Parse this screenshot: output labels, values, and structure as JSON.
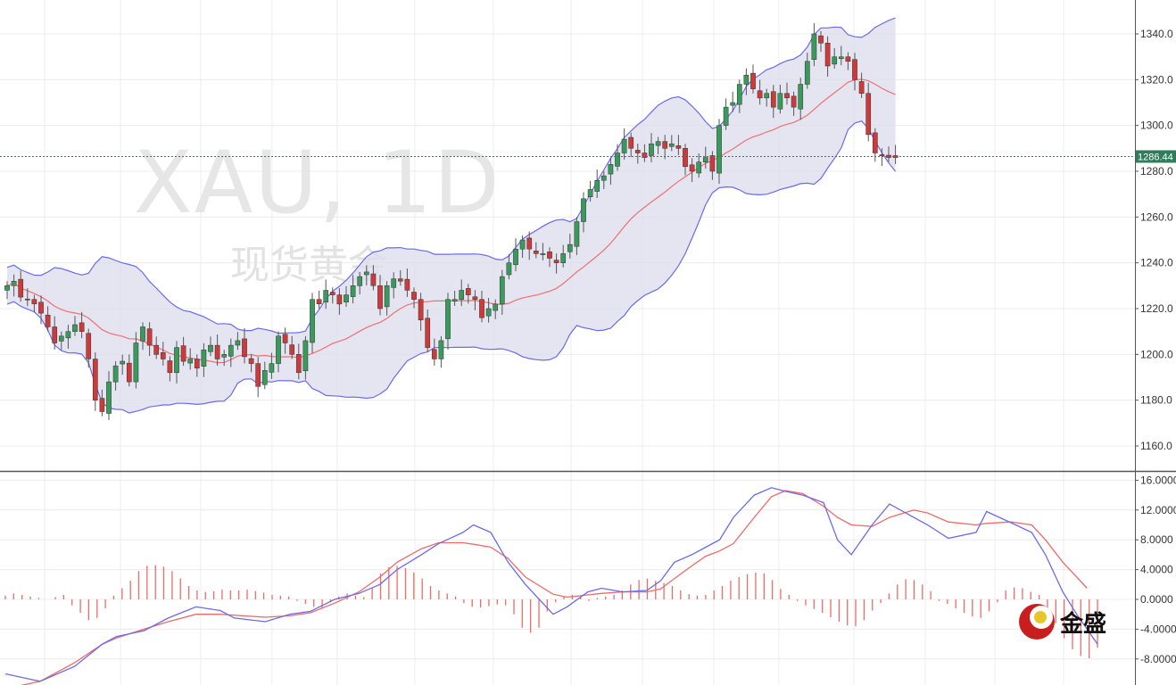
{
  "watermark": {
    "title": "XAU, 1D",
    "subtitle": "现货黄金"
  },
  "logo": {
    "name": "金盛"
  },
  "chart_data": [
    {
      "type": "candlestick",
      "panel": "price",
      "ylim": [
        1150,
        1350
      ],
      "grid": true,
      "y_ticks": [
        "1340.0",
        "1320.0",
        "1300.0",
        "1280.0",
        "1260.0",
        "1240.0",
        "1220.0",
        "1200.0",
        "1180.0",
        "1160.0"
      ],
      "y_tick_values": [
        1340,
        1320,
        1300,
        1280,
        1260,
        1240,
        1220,
        1200,
        1180,
        1160
      ],
      "last_price": {
        "label": "1286.44",
        "value": 1286.44,
        "color": "#2e7d5b"
      },
      "colors": {
        "up": "#3a9a5c",
        "down": "#cc3a3a",
        "band_fill": "#dcdcee",
        "band_line": "#6a6aee",
        "middle_line": "#ee7070"
      },
      "closes": [
        1230,
        1232,
        1225,
        1224,
        1222,
        1218,
        1212,
        1205,
        1208,
        1210,
        1213,
        1210,
        1198,
        1180,
        1175,
        1188,
        1195,
        1197,
        1188,
        1205,
        1212,
        1204,
        1200,
        1198,
        1192,
        1203,
        1197,
        1198,
        1194,
        1202,
        1204,
        1198,
        1200,
        1204,
        1206,
        1199,
        1196,
        1186,
        1193,
        1196,
        1208,
        1205,
        1200,
        1192,
        1206,
        1224,
        1222,
        1228,
        1226,
        1222,
        1226,
        1230,
        1234,
        1236,
        1230,
        1220,
        1230,
        1233,
        1232,
        1228,
        1224,
        1215,
        1203,
        1198,
        1206,
        1224,
        1224,
        1228,
        1226,
        1224,
        1216,
        1220,
        1222,
        1234,
        1240,
        1246,
        1250,
        1246,
        1244,
        1244,
        1242,
        1240,
        1244,
        1248,
        1258,
        1268,
        1272,
        1276,
        1278,
        1283,
        1288,
        1294,
        1290,
        1288,
        1286,
        1292,
        1293,
        1290,
        1292,
        1290,
        1282,
        1280,
        1284,
        1286,
        1280,
        1300,
        1308,
        1310,
        1318,
        1322,
        1316,
        1312,
        1314,
        1308,
        1314,
        1312,
        1308,
        1318,
        1328,
        1340,
        1336,
        1326,
        1330,
        1330,
        1328,
        1320,
        1314,
        1296,
        1288,
        1287,
        1286,
        1286
      ]
    },
    {
      "type": "macd",
      "panel": "oscillator",
      "ylim": [
        -10,
        17
      ],
      "grid": true,
      "y_ticks": [
        "16.0000",
        "12.0000",
        "8.0000",
        "4.0000",
        "0.0000",
        "-4.0000",
        "-8.0000"
      ],
      "y_tick_values": [
        16,
        12,
        8,
        4,
        0,
        -4,
        -8
      ],
      "colors": {
        "macd": "#6a6aee",
        "signal": "#ee6a6a",
        "histogram": "#ee6a6a"
      },
      "macd_points": [
        [
          0,
          -10
        ],
        [
          10,
          -11
        ],
        [
          20,
          -9
        ],
        [
          28,
          -6
        ],
        [
          32,
          -5
        ],
        [
          40,
          -4.2
        ],
        [
          47,
          -2.5
        ],
        [
          55,
          -1
        ],
        [
          62,
          -1.5
        ],
        [
          66,
          -2.5
        ],
        [
          75,
          -3
        ],
        [
          82,
          -2
        ],
        [
          88,
          -1.6
        ],
        [
          95,
          0
        ],
        [
          102,
          0.8
        ],
        [
          108,
          2
        ],
        [
          113,
          4
        ],
        [
          120,
          6
        ],
        [
          125,
          7.5
        ],
        [
          132,
          9
        ],
        [
          135,
          10
        ],
        [
          140,
          9
        ],
        [
          145,
          5
        ],
        [
          150,
          2
        ],
        [
          158,
          -2
        ],
        [
          162,
          -1
        ],
        [
          168,
          1
        ],
        [
          172,
          1.5
        ],
        [
          178,
          1
        ],
        [
          185,
          1.2
        ],
        [
          189,
          2.5
        ],
        [
          193,
          5
        ],
        [
          198,
          6
        ],
        [
          202,
          7
        ],
        [
          206,
          8
        ],
        [
          210,
          11
        ],
        [
          216,
          14
        ],
        [
          221,
          15
        ],
        [
          225,
          14.5
        ],
        [
          230,
          14
        ],
        [
          236,
          13
        ],
        [
          240,
          8
        ],
        [
          244,
          6
        ],
        [
          250,
          10
        ],
        [
          255,
          12.8
        ],
        [
          262,
          11
        ],
        [
          266,
          10
        ],
        [
          272,
          8.2
        ],
        [
          280,
          9
        ],
        [
          283,
          11.8
        ],
        [
          290,
          10.3
        ],
        [
          296,
          9
        ],
        [
          300,
          6
        ],
        [
          305,
          1
        ],
        [
          309,
          -2
        ],
        [
          312,
          -4
        ],
        [
          315,
          -6
        ]
      ],
      "signal_points": [
        [
          0,
          -12
        ],
        [
          10,
          -11
        ],
        [
          20,
          -8.5
        ],
        [
          28,
          -6
        ],
        [
          32,
          -5.2
        ],
        [
          40,
          -4
        ],
        [
          47,
          -3
        ],
        [
          55,
          -2
        ],
        [
          62,
          -2
        ],
        [
          75,
          -2.4
        ],
        [
          82,
          -2.2
        ],
        [
          88,
          -1.8
        ],
        [
          95,
          -0.5
        ],
        [
          102,
          1
        ],
        [
          108,
          3
        ],
        [
          113,
          5
        ],
        [
          120,
          6.8
        ],
        [
          125,
          7.6
        ],
        [
          132,
          7.6
        ],
        [
          135,
          7.4
        ],
        [
          140,
          7
        ],
        [
          145,
          5.5
        ],
        [
          150,
          3
        ],
        [
          158,
          0.7
        ],
        [
          162,
          0.3
        ],
        [
          168,
          0.6
        ],
        [
          172,
          0.8
        ],
        [
          178,
          1
        ],
        [
          185,
          1
        ],
        [
          189,
          1.4
        ],
        [
          193,
          2.8
        ],
        [
          198,
          4.5
        ],
        [
          202,
          5.8
        ],
        [
          206,
          6.5
        ],
        [
          210,
          7.5
        ],
        [
          216,
          11
        ],
        [
          221,
          13.8
        ],
        [
          225,
          14.6
        ],
        [
          230,
          14.2
        ],
        [
          236,
          12.5
        ],
        [
          240,
          11
        ],
        [
          244,
          10
        ],
        [
          250,
          9.8
        ],
        [
          255,
          11
        ],
        [
          262,
          12
        ],
        [
          266,
          11.6
        ],
        [
          272,
          10.4
        ],
        [
          280,
          10
        ],
        [
          283,
          10.2
        ],
        [
          290,
          10.4
        ],
        [
          296,
          10
        ],
        [
          300,
          8
        ],
        [
          305,
          5
        ],
        [
          309,
          3
        ],
        [
          312,
          1.5
        ]
      ],
      "histogram": [
        0.5,
        0.8,
        0.6,
        0.4,
        0.2,
        0.0,
        0.3,
        0.6,
        -0.8,
        -1.8,
        -2.8,
        -2.5,
        -1.2,
        0.5,
        1.5,
        2.5,
        3.8,
        4.5,
        4.6,
        4.4,
        3.8,
        2.8,
        1.8,
        1.2,
        1.0,
        1.1,
        1.3,
        1.2,
        1.2,
        1.3,
        1.1,
        0.9,
        0.6,
        0.5,
        0.4,
        -0.2,
        -0.6,
        -1.0,
        -1.2,
        -0.4,
        0.4,
        0.8,
        0.5,
        0.3,
        1.6,
        3.5,
        4.3,
        4.5,
        4.2,
        3.6,
        2.8,
        1.8,
        1.2,
        0.8,
        0.4,
        -0.5,
        -1.0,
        -1.1,
        -0.9,
        -0.7,
        -0.8,
        -2.0,
        -3.8,
        -4.5,
        -3.8,
        -1.6,
        -0.4,
        0.4,
        0.6,
        0.3,
        -0.2,
        0.2,
        0.4,
        0.6,
        1.2,
        2.0,
        2.6,
        2.8,
        2.5,
        2.2,
        1.8,
        1.2,
        0.7,
        0.5,
        0.6,
        1.2,
        1.8,
        2.5,
        3.0,
        3.4,
        3.6,
        3.5,
        2.6,
        1.4,
        0.6,
        -0.2,
        -0.8,
        -1.3,
        -1.8,
        -2.4,
        -3.0,
        -3.5,
        -3.6,
        -2.8,
        -1.5,
        -0.5,
        0.8,
        2.0,
        2.7,
        2.6,
        2.0,
        1.1,
        -0.2,
        -0.6,
        -1.2,
        -1.8,
        -2.3,
        -2.5,
        -1.6,
        -0.4,
        1.2,
        1.6,
        1.5,
        1.0,
        0.6,
        -1.6,
        -3.2,
        -5.2,
        -6.7,
        -7.6,
        -7.9,
        -6.5
      ]
    }
  ]
}
